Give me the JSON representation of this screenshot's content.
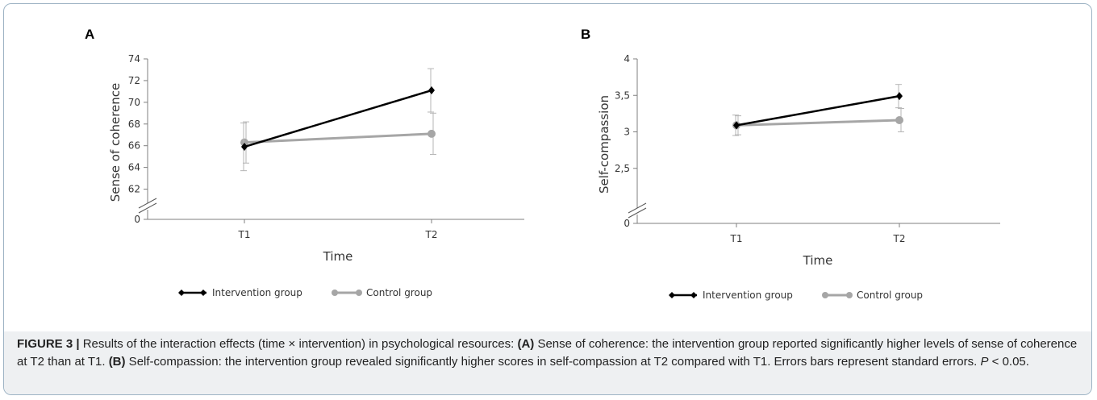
{
  "colors": {
    "intervention": "#000000",
    "control": "#a6a6a6",
    "axis": "#7f7f7f",
    "caption_bg": "#eef0f2",
    "frame": "#9db3c4"
  },
  "caption": {
    "label": "FIGURE 3 |",
    "intro": " Results of the interaction effects (time × intervention) in psychological resources: ",
    "a_label": "(A)",
    "a_text": " Sense of coherence: the intervention group reported significantly higher levels of sense of coherence at T2 than at T1. ",
    "b_label": "(B)",
    "b_text": " Self-compassion: the intervention group revealed significantly higher scores in self-compassion at T2 compared with T1. Errors bars represent standard errors. ",
    "p_label": "P",
    "p_text": " < 0.05."
  },
  "chart_data": [
    {
      "panel_label": "A",
      "type": "line",
      "xlabel": "Time",
      "ylabel": "Sense of coherence",
      "x": [
        "T1",
        "T2"
      ],
      "y_ticks": [
        "0",
        "62",
        "64",
        "66",
        "68",
        "70",
        "72",
        "74"
      ],
      "ylim": [
        61,
        74
      ],
      "axis_break": true,
      "grid": false,
      "legend_position": "bottom",
      "series": [
        {
          "name": "Intervention group",
          "marker": "diamond",
          "values": [
            65.9,
            71.1
          ],
          "errors": [
            2.2,
            2.0
          ]
        },
        {
          "name": "Control group",
          "marker": "circle",
          "values": [
            66.3,
            67.1
          ],
          "errors": [
            1.9,
            1.9
          ]
        }
      ]
    },
    {
      "panel_label": "B",
      "type": "line",
      "xlabel": "Time",
      "ylabel": "Self-compassion",
      "x": [
        "T1",
        "T2"
      ],
      "y_ticks": [
        "0",
        "2,5",
        "3",
        "3,5",
        "4"
      ],
      "ylim": [
        2.0,
        4.0
      ],
      "axis_break": true,
      "grid": false,
      "legend_position": "bottom",
      "series": [
        {
          "name": "Intervention group",
          "marker": "diamond",
          "values": [
            3.09,
            3.49
          ],
          "errors": [
            0.14,
            0.16
          ]
        },
        {
          "name": "Control group",
          "marker": "circle",
          "values": [
            3.09,
            3.16
          ],
          "errors": [
            0.13,
            0.16
          ]
        }
      ]
    }
  ]
}
